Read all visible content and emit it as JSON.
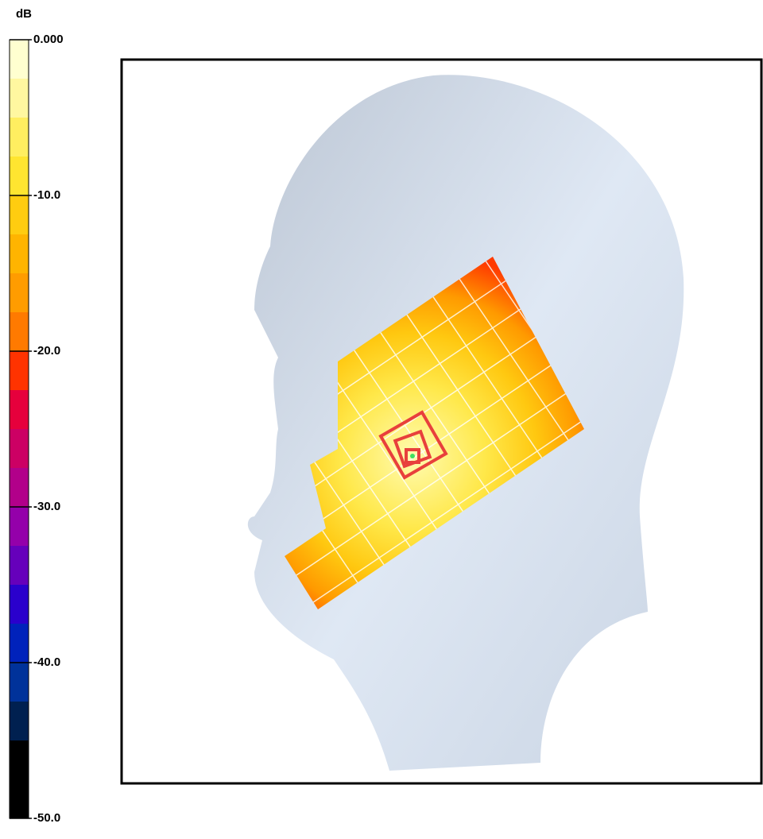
{
  "colorbar": {
    "unit": "dB",
    "lim": [
      -50,
      0
    ],
    "ticks": [
      {
        "value": 0,
        "label": "0.000"
      },
      {
        "value": -10,
        "label": "-10.0"
      },
      {
        "value": -20,
        "label": "-20.0"
      },
      {
        "value": -30,
        "label": "-30.0"
      },
      {
        "value": -40,
        "label": "-40.0"
      },
      {
        "value": -50,
        "label": "-50.0"
      }
    ],
    "colors": [
      "#ffffd0",
      "#fff7a0",
      "#ffee60",
      "#ffe530",
      "#ffcc10",
      "#ffb400",
      "#ff9c00",
      "#ff7a00",
      "#ff3300",
      "#e6003c",
      "#cc0064",
      "#b2008a",
      "#9400aa",
      "#6600bb",
      "#2a00cc",
      "#0022bb",
      "#00329a",
      "#002050",
      "#000000",
      "#000000"
    ]
  }
}
